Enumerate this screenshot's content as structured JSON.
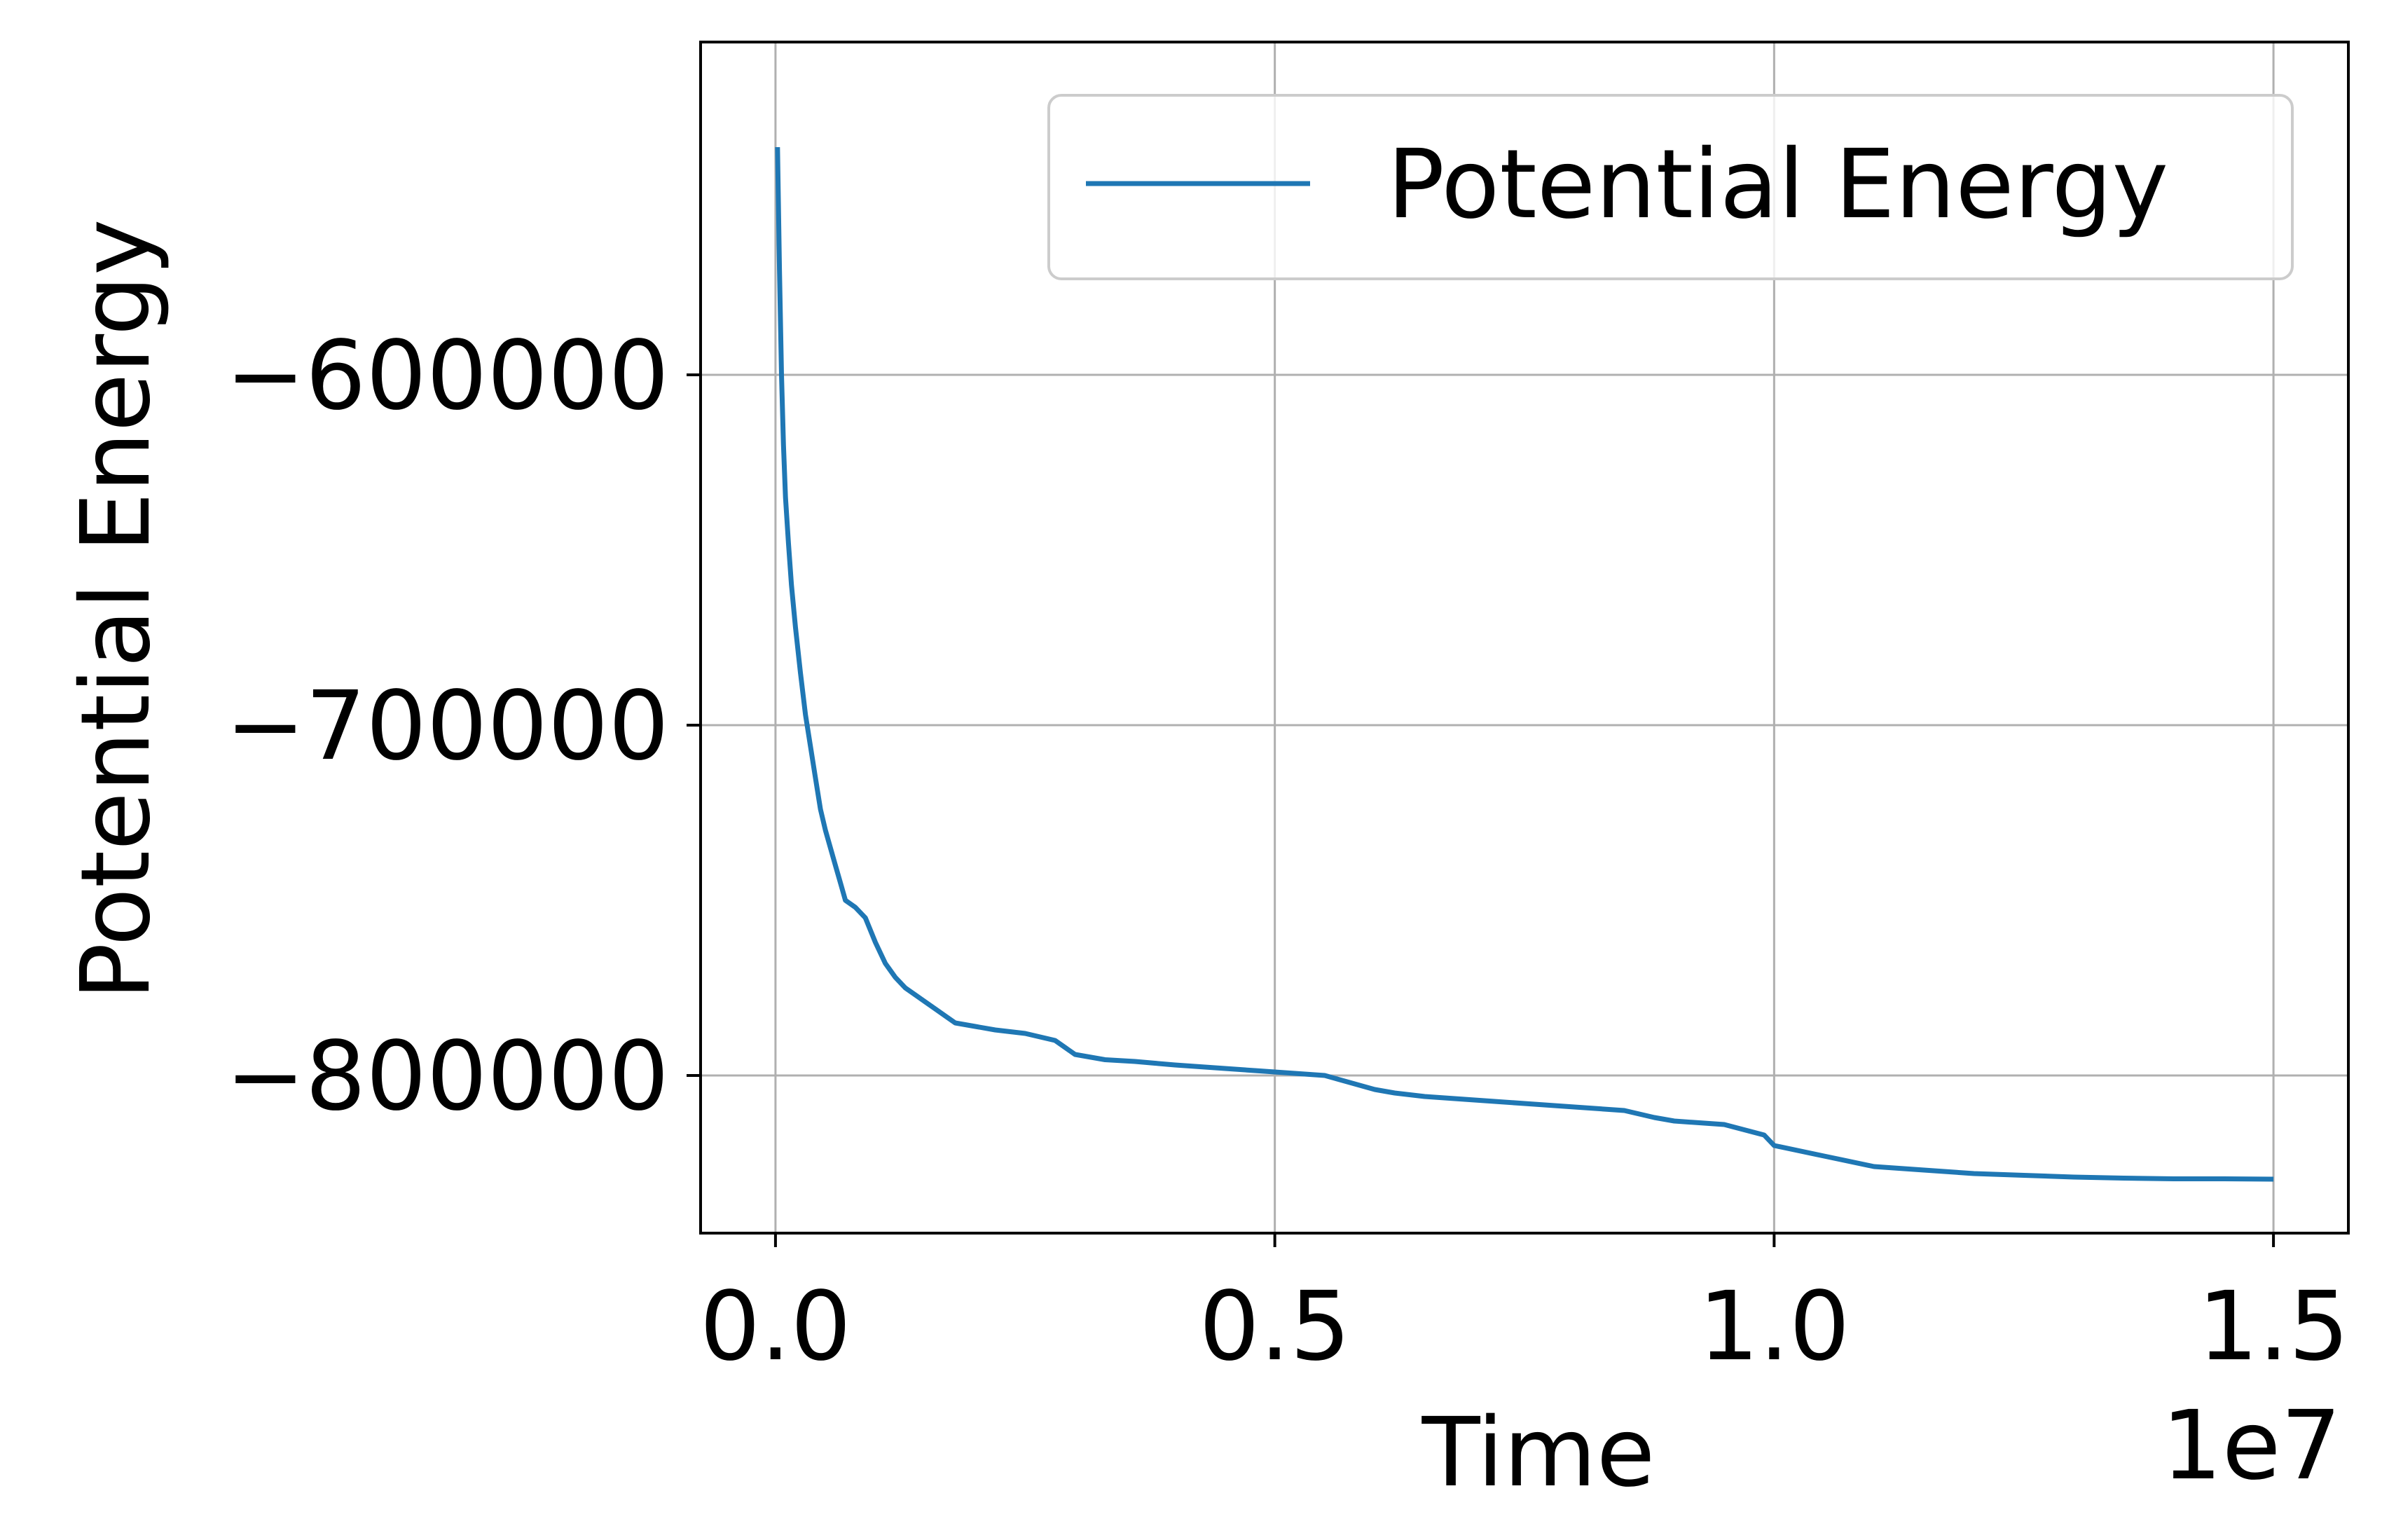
{
  "chart_data": {
    "type": "line",
    "title": "",
    "xlabel": "Time",
    "ylabel": "Potential Energy",
    "x_offset_label": "1e7",
    "x_scale": 10000000,
    "xlim": [
      -0.075,
      1.575
    ],
    "ylim": [
      -845000,
      -505000
    ],
    "x_ticks": [
      0.0,
      0.5,
      1.0,
      1.5
    ],
    "x_tick_labels": [
      "0.0",
      "0.5",
      "1.0",
      "1.5"
    ],
    "y_ticks": [
      -600000,
      -700000,
      -800000
    ],
    "y_tick_labels": [
      "−600000",
      "−700000",
      "−800000"
    ],
    "grid": true,
    "legend_position": "top-right",
    "colors": {
      "series": "#1f77b4",
      "grid": "#b0b0b0",
      "axes": "#000000",
      "legend_border": "#cccccc"
    },
    "series": [
      {
        "name": "Potential Energy",
        "x": [
          0.002,
          0.004,
          0.006,
          0.008,
          0.01,
          0.013,
          0.016,
          0.02,
          0.025,
          0.03,
          0.035,
          0.04,
          0.045,
          0.05,
          0.055,
          0.06,
          0.065,
          0.07,
          0.08,
          0.09,
          0.1,
          0.11,
          0.12,
          0.13,
          0.14,
          0.15,
          0.16,
          0.17,
          0.18,
          0.2,
          0.22,
          0.25,
          0.28,
          0.3,
          0.33,
          0.36,
          0.38,
          0.4,
          0.45,
          0.5,
          0.55,
          0.6,
          0.62,
          0.65,
          0.7,
          0.75,
          0.8,
          0.85,
          0.88,
          0.9,
          0.95,
          0.97,
          0.99,
          1.0,
          1.05,
          1.1,
          1.15,
          1.2,
          1.25,
          1.3,
          1.35,
          1.4,
          1.45,
          1.5
        ],
        "y": [
          -535000,
          -570000,
          -600000,
          -620000,
          -635000,
          -648000,
          -660000,
          -672000,
          -685000,
          -697000,
          -706000,
          -715000,
          -724000,
          -730000,
          -735000,
          -740000,
          -745000,
          -750000,
          -752000,
          -755000,
          -762000,
          -768000,
          -772000,
          -775000,
          -777000,
          -779000,
          -781000,
          -783000,
          -785000,
          -786000,
          -787000,
          -788000,
          -790000,
          -794000,
          -795500,
          -796000,
          -796500,
          -797000,
          -798000,
          -799000,
          -800000,
          -804000,
          -805000,
          -806000,
          -807000,
          -808000,
          -809000,
          -810000,
          -812000,
          -813000,
          -814000,
          -815500,
          -817000,
          -820000,
          -823000,
          -826000,
          -827000,
          -828000,
          -828500,
          -829000,
          -829300,
          -829500,
          -829500,
          -829600
        ]
      }
    ]
  }
}
